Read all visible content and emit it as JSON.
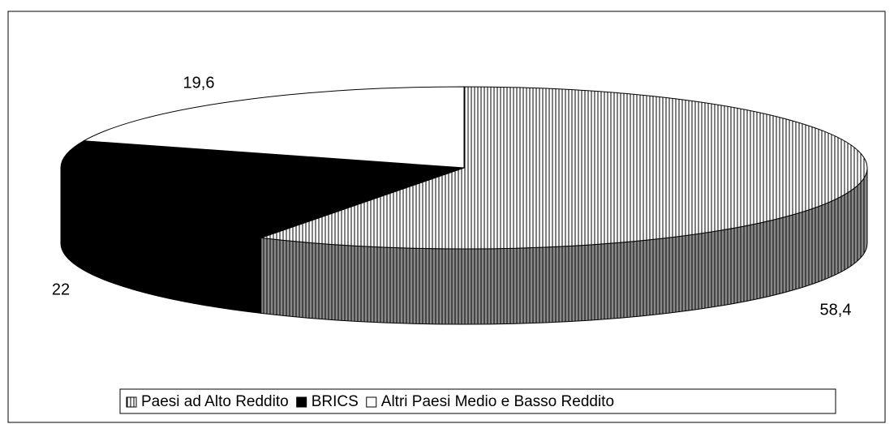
{
  "chart_data": {
    "type": "pie",
    "categories": [
      "Paesi ad Alto Reddito",
      "BRICS",
      "Altri Paesi Medio e Basso Reddito"
    ],
    "values": [
      58.4,
      22,
      19.6
    ],
    "value_labels": [
      "58,4",
      "22",
      "19,6"
    ]
  }
}
